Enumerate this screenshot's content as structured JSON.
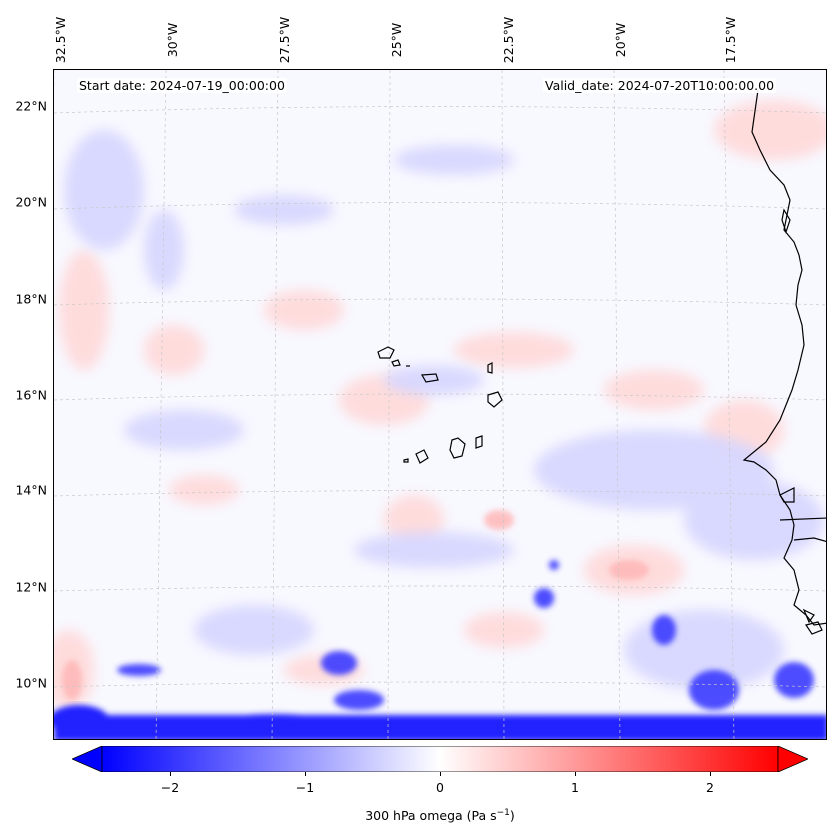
{
  "map": {
    "lon_labels": [
      "32.5°W",
      "30°W",
      "27.5°W",
      "25°W",
      "22.5°W",
      "20°W",
      "17.5°W"
    ],
    "lat_labels": [
      "22°N",
      "20°N",
      "18°N",
      "16°N",
      "14°N",
      "12°N",
      "10°N"
    ],
    "start_date": "Start date: 2024-07-19_00:00:00",
    "valid_date": "Valid_date: 2024-07-20T10:00:00.00",
    "field": "300 hPa omega",
    "colormap": "bwr",
    "neg_color": "#0000ff",
    "zero_color": "#ffffff",
    "pos_color": "#ff0000"
  },
  "colorbar": {
    "ticks": [
      "−2",
      "−1",
      "0",
      "1",
      "2"
    ],
    "tick_values": [
      -2,
      -1,
      0,
      1,
      2
    ],
    "range": [
      -2.5,
      2.5
    ],
    "label_main": "300 hPa omega (Pa s",
    "label_exp": "−1",
    "label_close": ")"
  }
}
